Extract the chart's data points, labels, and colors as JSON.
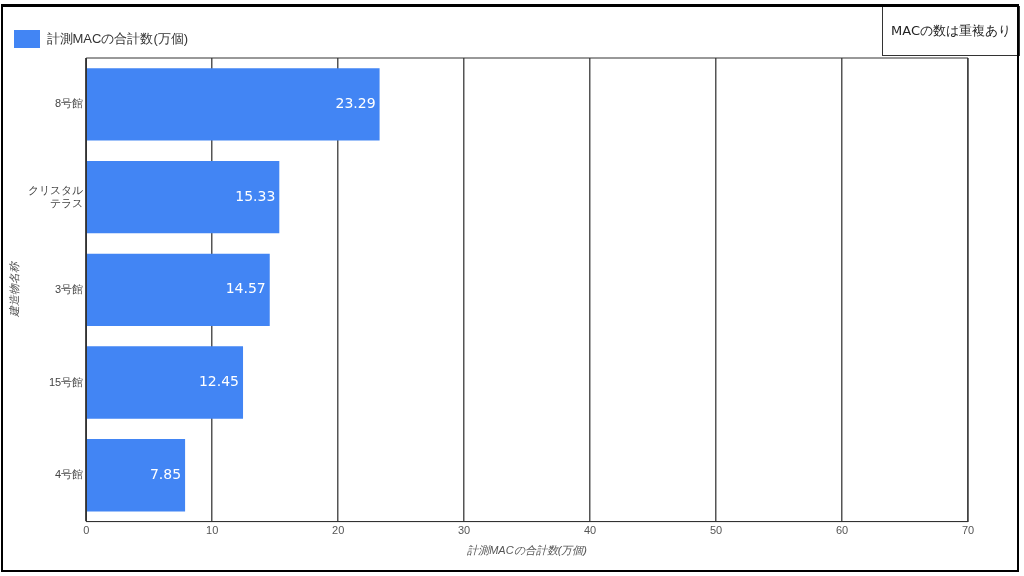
{
  "chart_data": {
    "type": "bar",
    "orientation": "horizontal",
    "legend": "top left",
    "grid": "x",
    "data_labels": true,
    "categories": [
      "8号館",
      "クリスタルテラス",
      "3号館",
      "15号館",
      "4号館"
    ],
    "series": [
      {
        "name": "計測MACの合計数(万個)",
        "color": "#4285f4",
        "values": [
          23.29,
          15.33,
          14.57,
          12.45,
          7.85
        ]
      }
    ],
    "xlim": [
      0,
      70
    ],
    "xticks": [
      0,
      10,
      20,
      30,
      40,
      50,
      60,
      70
    ],
    "xlabel": "計測MACの合計数(万個)",
    "ylabel": "建造物名称",
    "annotations": [
      "MACの数は重複あり"
    ]
  }
}
